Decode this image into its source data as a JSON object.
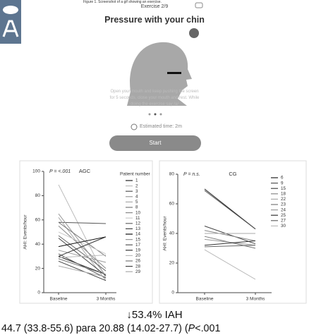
{
  "figure": {
    "caption": "Figure 1. Screenshot of a gif showing an exercise.",
    "exercise": "Exercise 2/9",
    "title": "Pressure with your chin",
    "instructions": [
      "Open your mouth and keep pushing the screen",
      "for 5 seconds, close your mouth and rest. While",
      "doing the exercise say /a/"
    ],
    "time": "Estimated time: 2m",
    "button": "Start"
  },
  "chart_data": [
    {
      "type": "line",
      "title": "AGC",
      "annotation": "P = <.001",
      "ylabel": "AHI: Events/hour",
      "categories": [
        "Baseline",
        "3 Months"
      ],
      "ylim": [
        0,
        100
      ],
      "yticks": [
        0,
        20,
        40,
        60,
        80,
        100
      ],
      "legend_title": "Patient number",
      "series": [
        {
          "name": "1",
          "color": "#222222",
          "values": [
            30,
            15
          ]
        },
        {
          "name": "2",
          "color": "#bbbbbb",
          "values": [
            89,
            12
          ]
        },
        {
          "name": "3",
          "color": "#555555",
          "values": [
            58,
            57
          ]
        },
        {
          "name": "4",
          "color": "#999999",
          "values": [
            65,
            14
          ]
        },
        {
          "name": "5",
          "color": "#aaaaaa",
          "values": [
            62,
            10
          ]
        },
        {
          "name": "8",
          "color": "#777777",
          "values": [
            58,
            30
          ]
        },
        {
          "name": "10",
          "color": "#888888",
          "values": [
            55,
            20
          ]
        },
        {
          "name": "11",
          "color": "#cccccc",
          "values": [
            50,
            32
          ]
        },
        {
          "name": "12",
          "color": "#666666",
          "values": [
            47,
            18
          ]
        },
        {
          "name": "13",
          "color": "#444444",
          "values": [
            45,
            14
          ]
        },
        {
          "name": "14",
          "color": "#111111",
          "values": [
            38,
            46
          ]
        },
        {
          "name": "15",
          "color": "#999999",
          "values": [
            35,
            25
          ]
        },
        {
          "name": "17",
          "color": "#555555",
          "values": [
            32,
            12
          ]
        },
        {
          "name": "19",
          "color": "#333333",
          "values": [
            30,
            46
          ]
        },
        {
          "name": "20",
          "color": "#bbbbbb",
          "values": [
            29,
            31
          ]
        },
        {
          "name": "26",
          "color": "#777777",
          "values": [
            28,
            15
          ]
        },
        {
          "name": "28",
          "color": "#444444",
          "values": [
            26,
            10
          ]
        },
        {
          "name": "29",
          "color": "#aaaaaa",
          "values": [
            22,
            13
          ]
        }
      ]
    },
    {
      "type": "line",
      "title": "CG",
      "annotation": "P = n.s.",
      "ylabel": "AHI: Events/hour",
      "categories": [
        "Baseline",
        "3 Months"
      ],
      "ylim": [
        0,
        80
      ],
      "yticks": [
        0,
        20,
        40,
        60,
        80
      ],
      "series": [
        {
          "name": "6",
          "color": "#222222",
          "values": [
            70,
            43
          ]
        },
        {
          "name": "9",
          "color": "#555555",
          "values": [
            69,
            43
          ]
        },
        {
          "name": "15",
          "color": "#444444",
          "values": [
            45,
            33
          ]
        },
        {
          "name": "18",
          "color": "#888888",
          "values": [
            42,
            35
          ]
        },
        {
          "name": "22",
          "color": "#aaaaaa",
          "values": [
            40,
            40
          ]
        },
        {
          "name": "23",
          "color": "#777777",
          "values": [
            38,
            30
          ]
        },
        {
          "name": "24",
          "color": "#999999",
          "values": [
            36,
            32
          ]
        },
        {
          "name": "25",
          "color": "#333333",
          "values": [
            32,
            35
          ]
        },
        {
          "name": "27",
          "color": "#666666",
          "values": [
            31,
            32
          ]
        },
        {
          "name": "30",
          "color": "#bbbbbb",
          "values": [
            29,
            9
          ]
        }
      ]
    }
  ],
  "footer": {
    "change": "↓53.4% IAH",
    "detail": "44.7 (33.8-55.6) para 20.88 (14.02-27.7) (",
    "p": "P",
    "p_value": "<.001"
  }
}
